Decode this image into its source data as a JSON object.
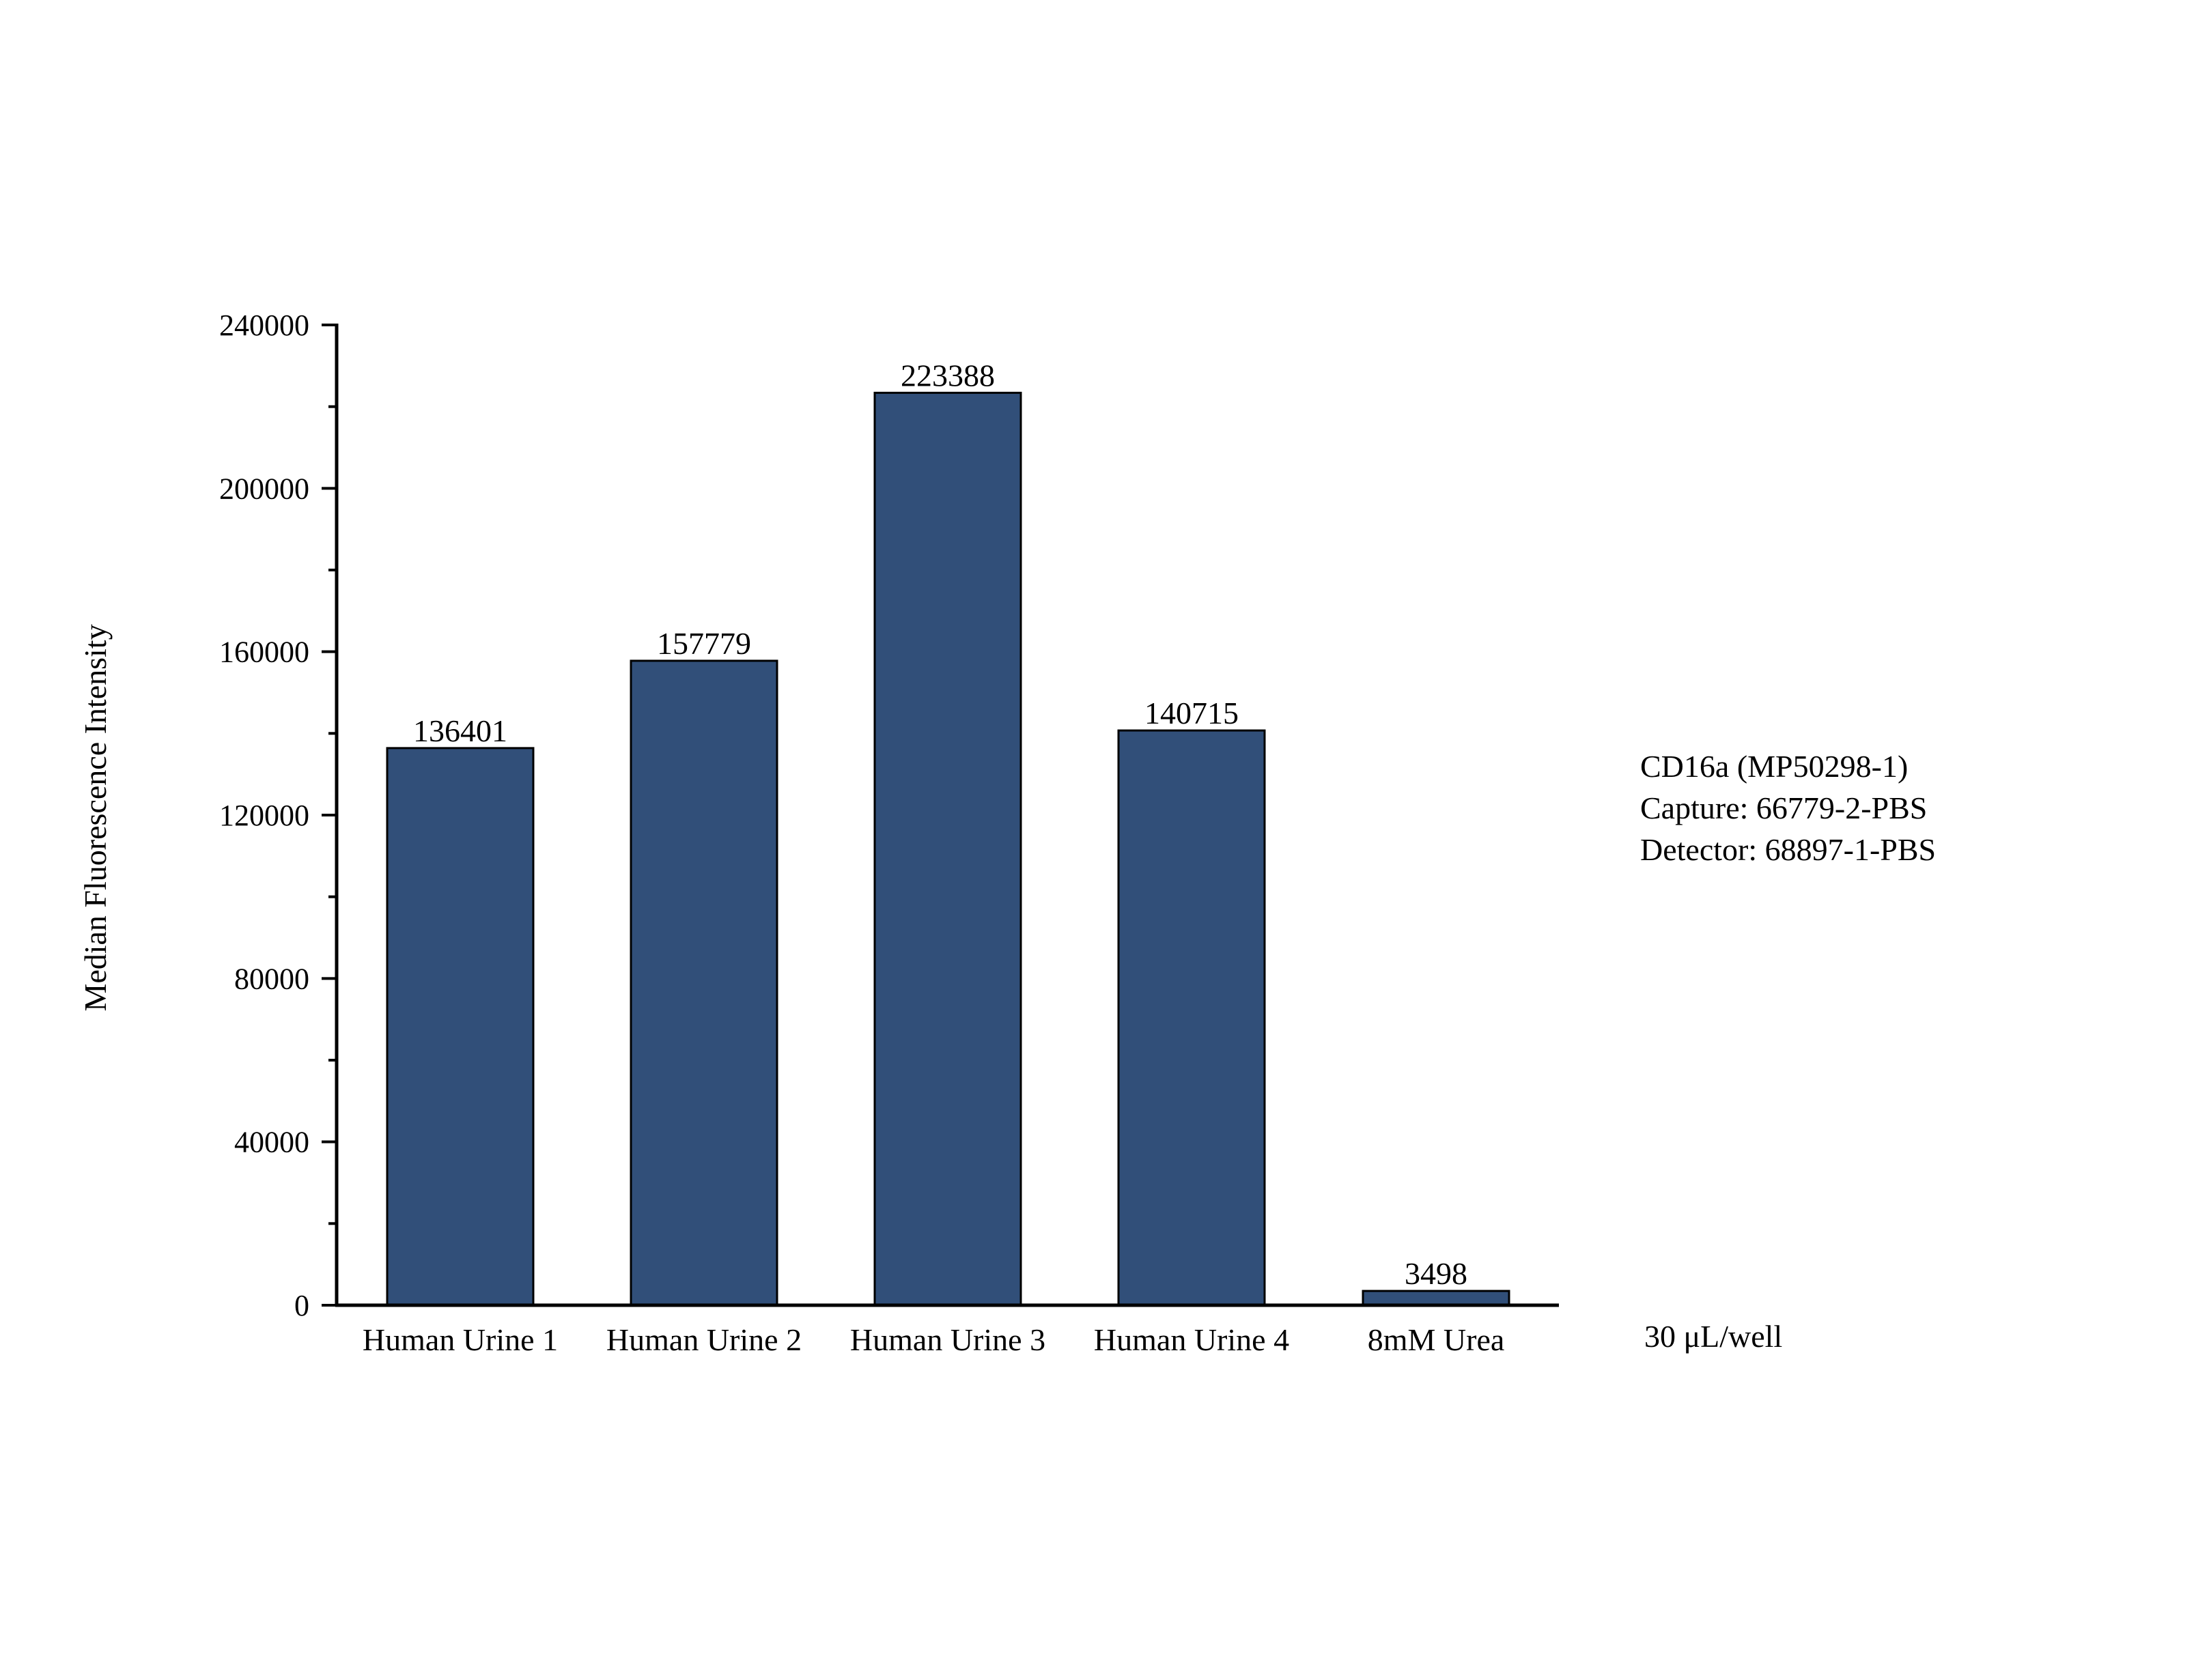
{
  "chart_data": {
    "type": "bar",
    "categories": [
      "Human Urine 1",
      "Human Urine 2",
      "Human Urine 3",
      "Human Urine 4",
      "8mM Urea"
    ],
    "values": [
      136401,
      157779,
      223388,
      140715,
      3498
    ],
    "value_labels": [
      "136401",
      "157779",
      "223388",
      "140715",
      "3498"
    ],
    "ylabel": "Median Fluorescence Intensity",
    "xlabel": "",
    "ylim": [
      0,
      240000
    ],
    "y_ticks": [
      0,
      40000,
      80000,
      120000,
      160000,
      200000,
      240000
    ],
    "grid": false,
    "bar_color": "#314f79",
    "annotations": {
      "lines": [
        "CD16a (MP50298-1)",
        "Capture: 66779-2-PBS",
        "Detector: 68897-1-PBS"
      ],
      "volume": "30 μL/well"
    }
  }
}
